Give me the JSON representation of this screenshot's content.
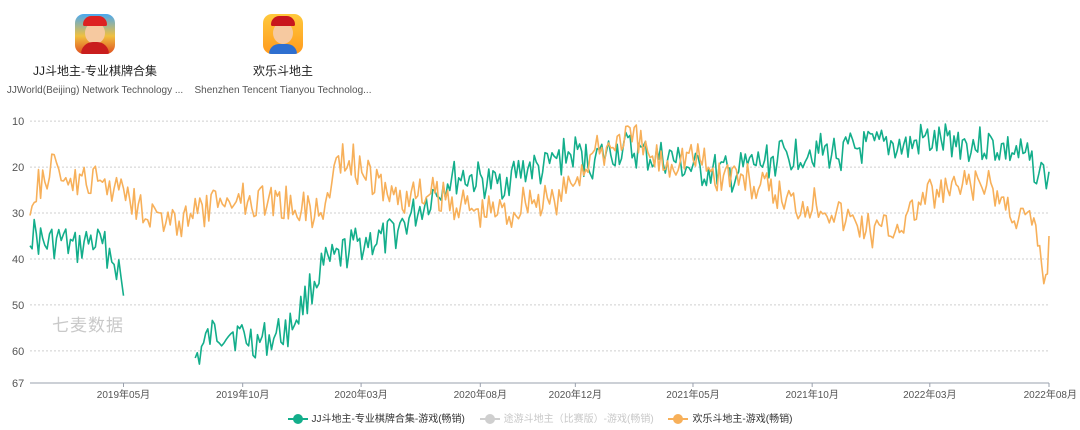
{
  "apps": [
    {
      "name": "JJ斗地主-专业棋牌合集",
      "developer": "JJWorld(Beijing) Network Technology ...",
      "icon": "jj-doudizhu-app-icon"
    },
    {
      "name": "欢乐斗地主",
      "developer": "Shenzhen Tencent Tianyou Technolog...",
      "icon": "huanle-doudizhu-app-icon"
    }
  ],
  "watermark": "七麦数据",
  "chart_data": {
    "type": "line",
    "y_reversed": true,
    "ylim": [
      67,
      8
    ],
    "yticks": [
      10,
      20,
      30,
      40,
      50,
      60,
      67
    ],
    "grid": "horizontal dotted",
    "x_start": "2019-01-01",
    "x_end": "2022-08-01",
    "xticks": [
      "2019年05月",
      "2019年10月",
      "2020年03月",
      "2020年08月",
      "2020年12月",
      "2021年05月",
      "2021年10月",
      "2022年03月",
      "2022年08月"
    ],
    "xtick_dates": [
      "2019-05-01",
      "2019-10-01",
      "2020-03-01",
      "2020-08-01",
      "2020-12-01",
      "2021-05-01",
      "2021-10-01",
      "2022-03-01",
      "2022-08-01"
    ],
    "legend_position": "bottom",
    "series": [
      {
        "name": "JJ斗地主-专业棋牌合集-游戏(畅销)",
        "color": "#13ae8b",
        "active": true,
        "points": [
          [
            "2019-01-01",
            34
          ],
          [
            "2019-01-20",
            37
          ],
          [
            "2019-02-10",
            36
          ],
          [
            "2019-02-28",
            38
          ],
          [
            "2019-03-20",
            36
          ],
          [
            "2019-04-10",
            38
          ],
          [
            "2019-04-25",
            42
          ],
          [
            "2019-05-01",
            48
          ],
          [
            "2019-08-01",
            62
          ],
          [
            "2019-08-20",
            57
          ],
          [
            "2019-09-10",
            55
          ],
          [
            "2019-09-30",
            57
          ],
          [
            "2019-10-20",
            58
          ],
          [
            "2019-11-10",
            57
          ],
          [
            "2019-12-01",
            55
          ],
          [
            "2019-12-20",
            49
          ],
          [
            "2020-01-10",
            42
          ],
          [
            "2020-02-01",
            40
          ],
          [
            "2020-02-20",
            37
          ],
          [
            "2020-03-10",
            36
          ],
          [
            "2020-04-01",
            36
          ],
          [
            "2020-04-20",
            33
          ],
          [
            "2020-05-10",
            30
          ],
          [
            "2020-06-01",
            26
          ],
          [
            "2020-06-20",
            23
          ],
          [
            "2020-07-10",
            22
          ],
          [
            "2020-08-01",
            23
          ],
          [
            "2020-08-20",
            24
          ],
          [
            "2020-09-10",
            22
          ],
          [
            "2020-10-01",
            20
          ],
          [
            "2020-10-20",
            21
          ],
          [
            "2020-11-10",
            18
          ],
          [
            "2020-12-01",
            17
          ],
          [
            "2020-12-20",
            19
          ],
          [
            "2021-01-10",
            17
          ],
          [
            "2021-02-01",
            16
          ],
          [
            "2021-02-20",
            17
          ],
          [
            "2021-03-10",
            18
          ],
          [
            "2021-04-01",
            18
          ],
          [
            "2021-04-20",
            20
          ],
          [
            "2021-05-10",
            21
          ],
          [
            "2021-06-01",
            21
          ],
          [
            "2021-06-20",
            22
          ],
          [
            "2021-07-10",
            20
          ],
          [
            "2021-08-01",
            19
          ],
          [
            "2021-08-20",
            18
          ],
          [
            "2021-09-10",
            17
          ],
          [
            "2021-10-01",
            16
          ],
          [
            "2021-10-20",
            17
          ],
          [
            "2021-11-10",
            17
          ],
          [
            "2021-12-01",
            16
          ],
          [
            "2021-12-20",
            16
          ],
          [
            "2022-01-10",
            15
          ],
          [
            "2022-02-01",
            16
          ],
          [
            "2022-02-20",
            14
          ],
          [
            "2022-03-10",
            15
          ],
          [
            "2022-04-01",
            14
          ],
          [
            "2022-04-20",
            15
          ],
          [
            "2022-05-10",
            15
          ],
          [
            "2022-06-01",
            16
          ],
          [
            "2022-06-20",
            17
          ],
          [
            "2022-07-10",
            19
          ],
          [
            "2022-07-25",
            22
          ],
          [
            "2022-08-01",
            21
          ]
        ]
      },
      {
        "name": "途游斗地主（比赛版）-游戏(畅销)",
        "color": "#cfcfcf",
        "active": false,
        "points": []
      },
      {
        "name": "欢乐斗地主-游戏(畅销)",
        "color": "#f7b05a",
        "active": true,
        "points": [
          [
            "2019-01-01",
            27
          ],
          [
            "2019-01-20",
            22
          ],
          [
            "2019-02-10",
            20
          ],
          [
            "2019-02-28",
            24
          ],
          [
            "2019-03-20",
            23
          ],
          [
            "2019-04-10",
            24
          ],
          [
            "2019-05-01",
            24
          ],
          [
            "2019-05-20",
            28
          ],
          [
            "2019-06-10",
            30
          ],
          [
            "2019-06-30",
            33
          ],
          [
            "2019-07-20",
            31
          ],
          [
            "2019-08-10",
            30
          ],
          [
            "2019-08-30",
            28
          ],
          [
            "2019-09-20",
            26
          ],
          [
            "2019-10-10",
            27
          ],
          [
            "2019-11-01",
            27
          ],
          [
            "2019-11-20",
            28
          ],
          [
            "2019-12-10",
            28
          ],
          [
            "2020-01-01",
            30
          ],
          [
            "2020-01-15",
            29
          ],
          [
            "2020-02-01",
            17
          ],
          [
            "2020-02-20",
            19
          ],
          [
            "2020-03-10",
            22
          ],
          [
            "2020-04-01",
            25
          ],
          [
            "2020-04-20",
            27
          ],
          [
            "2020-05-10",
            26
          ],
          [
            "2020-06-01",
            26
          ],
          [
            "2020-06-20",
            27
          ],
          [
            "2020-07-10",
            28
          ],
          [
            "2020-08-01",
            30
          ],
          [
            "2020-08-20",
            29
          ],
          [
            "2020-09-10",
            30
          ],
          [
            "2020-10-01",
            26
          ],
          [
            "2020-10-20",
            28
          ],
          [
            "2020-11-10",
            27
          ],
          [
            "2020-12-01",
            22
          ],
          [
            "2020-12-20",
            18
          ],
          [
            "2021-01-10",
            16
          ],
          [
            "2021-02-01",
            13
          ],
          [
            "2021-02-20",
            15
          ],
          [
            "2021-03-10",
            18
          ],
          [
            "2021-04-01",
            19
          ],
          [
            "2021-04-20",
            17
          ],
          [
            "2021-05-10",
            18
          ],
          [
            "2021-06-01",
            22
          ],
          [
            "2021-06-20",
            21
          ],
          [
            "2021-07-10",
            23
          ],
          [
            "2021-08-01",
            25
          ],
          [
            "2021-08-20",
            26
          ],
          [
            "2021-09-10",
            28
          ],
          [
            "2021-10-01",
            27
          ],
          [
            "2021-10-20",
            28
          ],
          [
            "2021-11-10",
            31
          ],
          [
            "2021-12-01",
            32
          ],
          [
            "2021-12-20",
            34
          ],
          [
            "2022-01-10",
            33
          ],
          [
            "2022-02-01",
            31
          ],
          [
            "2022-02-20",
            27
          ],
          [
            "2022-03-10",
            26
          ],
          [
            "2022-04-01",
            25
          ],
          [
            "2022-04-20",
            24
          ],
          [
            "2022-05-10",
            24
          ],
          [
            "2022-06-01",
            27
          ],
          [
            "2022-06-20",
            30
          ],
          [
            "2022-07-10",
            32
          ],
          [
            "2022-07-20",
            38
          ],
          [
            "2022-07-28",
            45
          ],
          [
            "2022-08-01",
            35
          ]
        ]
      }
    ]
  }
}
